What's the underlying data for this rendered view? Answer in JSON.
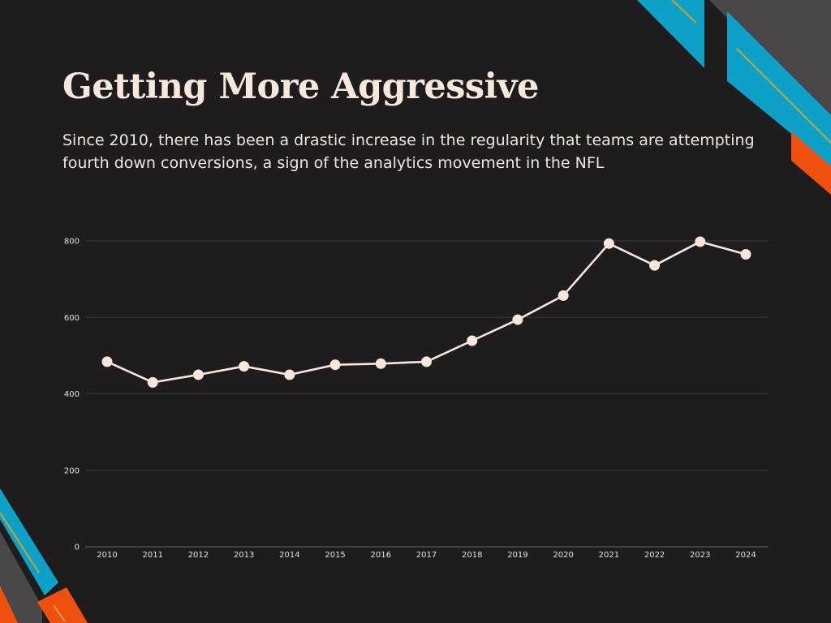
{
  "slide": {
    "title": "Getting More Aggressive",
    "subtitle": "Since 2010, there has been a drastic increase in the regularity that teams are attempting fourth down conversions, a sign of the analytics movement in the NFL"
  },
  "colors": {
    "background": "#1e1c1d",
    "text": "#f7e8db",
    "line": "#f7e8db",
    "grid": "#3a3738",
    "accent_blue": "#0ea1c8",
    "accent_orange": "#f0500d",
    "accent_gray": "#4a4748",
    "accent_gold": "#c9a42a"
  },
  "chart_data": {
    "type": "line",
    "categories": [
      "2010",
      "2011",
      "2012",
      "2013",
      "2014",
      "2015",
      "2016",
      "2017",
      "2018",
      "2019",
      "2020",
      "2021",
      "2022",
      "2023",
      "2024"
    ],
    "series": [
      {
        "values": [
          484,
          430,
          450,
          472,
          450,
          476,
          479,
          484,
          539,
          594,
          657,
          793,
          736,
          798,
          765
        ]
      }
    ],
    "yticks": [
      "0",
      "200",
      "400",
      "600",
      "800"
    ],
    "ylim": [
      0,
      800
    ],
    "grid": true,
    "legend": "none",
    "title": "",
    "xlabel": "",
    "ylabel": ""
  }
}
